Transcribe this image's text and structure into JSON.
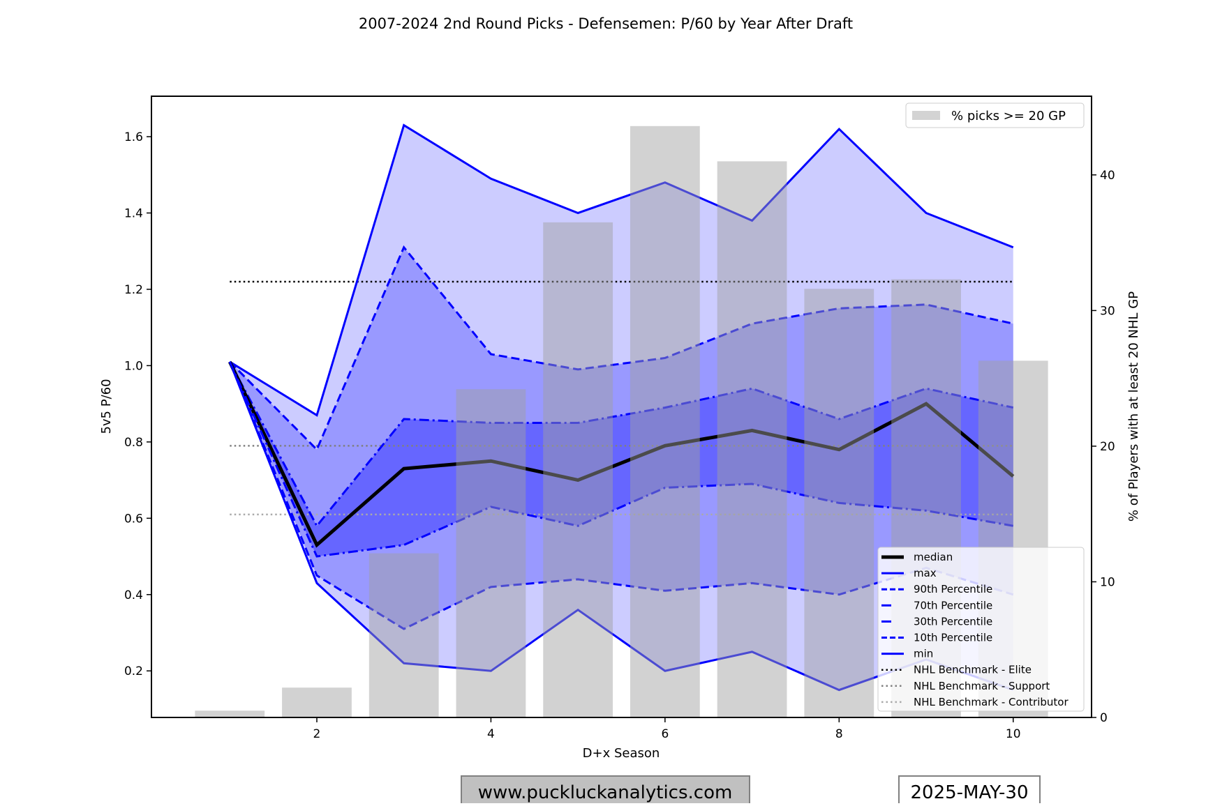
{
  "chart_data": {
    "type": "line",
    "title": "2007-2024 2nd Round Picks - Defensemen: P/60 by Year After Draft",
    "xlabel": "D+x Season",
    "ylabel": "5v5 P/60",
    "y2label": "% of Players with at least 20 NHL GP",
    "xlim": [
      0.1,
      10.9
    ],
    "ylim": [
      0.078,
      1.706
    ],
    "y2lim": [
      0,
      45.8
    ],
    "xticks": [
      2,
      4,
      6,
      8,
      10
    ],
    "yticks": [
      0.2,
      0.4,
      0.6,
      0.8,
      1.0,
      1.2,
      1.4,
      1.6
    ],
    "y2ticks": [
      0,
      10,
      20,
      30,
      40
    ],
    "x": [
      1,
      2,
      3,
      4,
      5,
      6,
      7,
      8,
      9,
      10
    ],
    "series": [
      {
        "key": "max",
        "name": "max",
        "values": [
          1.01,
          0.87,
          1.63,
          1.49,
          1.4,
          1.48,
          1.38,
          1.62,
          1.4,
          1.31
        ]
      },
      {
        "key": "p90",
        "name": "90th Percentile",
        "values": [
          1.01,
          0.78,
          1.31,
          1.03,
          0.99,
          1.02,
          1.11,
          1.15,
          1.16,
          1.11
        ]
      },
      {
        "key": "p70",
        "name": "70th Percentile",
        "values": [
          1.01,
          0.58,
          0.86,
          0.85,
          0.85,
          0.89,
          0.94,
          0.86,
          0.94,
          0.89
        ]
      },
      {
        "key": "median",
        "name": "median",
        "values": [
          1.01,
          0.53,
          0.73,
          0.75,
          0.7,
          0.79,
          0.83,
          0.78,
          0.9,
          0.71
        ]
      },
      {
        "key": "p30",
        "name": "30th Percentile",
        "values": [
          1.01,
          0.5,
          0.53,
          0.63,
          0.58,
          0.68,
          0.69,
          0.64,
          0.62,
          0.58
        ]
      },
      {
        "key": "p10",
        "name": "10th Percentile",
        "values": [
          1.01,
          0.45,
          0.31,
          0.42,
          0.44,
          0.41,
          0.43,
          0.4,
          0.47,
          0.4
        ]
      },
      {
        "key": "min",
        "name": "min",
        "values": [
          1.01,
          0.43,
          0.22,
          0.2,
          0.36,
          0.2,
          0.25,
          0.15,
          0.23,
          0.15
        ]
      }
    ],
    "benchmarks": [
      {
        "name": "NHL Benchmark - Elite",
        "value": 1.22,
        "color": "#000000"
      },
      {
        "name": "NHL Benchmark - Support",
        "value": 0.79,
        "color": "#808080"
      },
      {
        "name": "NHL Benchmark - Contributor",
        "value": 0.61,
        "color": "#aaaaaa"
      }
    ],
    "bars": {
      "name": "% picks >= 20 GP",
      "values": [
        0.5,
        2.2,
        12.1,
        24.2,
        36.5,
        43.6,
        41.0,
        31.6,
        32.3,
        26.3
      ],
      "color": "#d3d3d3"
    },
    "colors": {
      "line": "#0000ff",
      "median": "#000000",
      "band_outer": "#ccccff",
      "band_mid": "#9999ff",
      "band_inner": "#6666ff"
    },
    "legend_placement": [
      "top-right",
      "lower-right"
    ]
  },
  "footer": {
    "website": "www.puckluckanalytics.com",
    "date": "2025-MAY-30"
  }
}
